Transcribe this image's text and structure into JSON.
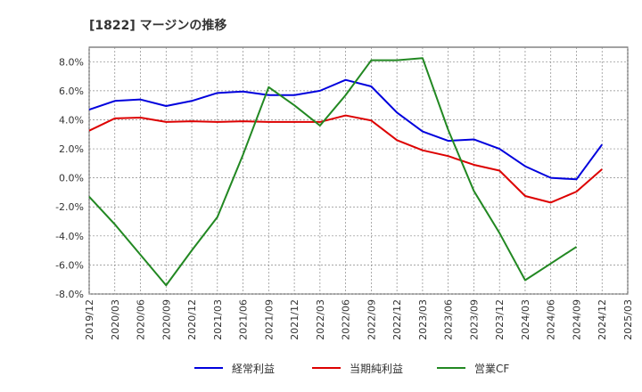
{
  "chart_data": {
    "type": "line",
    "title": "[1822]  マージンの推移",
    "xlabel": "",
    "ylabel": "",
    "ylim": [
      -8,
      9
    ],
    "yticks": [
      -8,
      -6,
      -4,
      -2,
      0,
      2,
      4,
      6,
      8
    ],
    "ytick_labels": [
      "-8.0%",
      "-6.0%",
      "-4.0%",
      "-2.0%",
      "0.0%",
      "2.0%",
      "4.0%",
      "6.0%",
      "8.0%"
    ],
    "x": [
      "2019/12",
      "2020/03",
      "2020/06",
      "2020/09",
      "2020/12",
      "2021/03",
      "2021/06",
      "2021/09",
      "2021/12",
      "2022/03",
      "2022/06",
      "2022/09",
      "2022/12",
      "2023/03",
      "2023/06",
      "2023/09",
      "2023/12",
      "2024/03",
      "2024/06",
      "2024/09",
      "2024/12",
      "2025/03"
    ],
    "grid": true,
    "legend_position": "bottom",
    "series": [
      {
        "name": "経常利益",
        "color": "#0000dd",
        "values": [
          4.7,
          5.3,
          5.4,
          4.95,
          5.3,
          5.85,
          5.95,
          5.7,
          5.7,
          6.0,
          6.75,
          6.3,
          4.5,
          3.2,
          2.55,
          2.65,
          2.0,
          0.8,
          0.0,
          -0.1,
          2.3,
          null
        ]
      },
      {
        "name": "当期純利益",
        "color": "#dd0000",
        "values": [
          3.25,
          4.1,
          4.15,
          3.85,
          3.9,
          3.85,
          3.9,
          3.85,
          3.85,
          3.85,
          4.3,
          3.95,
          2.6,
          1.9,
          1.5,
          0.9,
          0.5,
          -1.25,
          -1.7,
          -0.95,
          0.6,
          null
        ]
      },
      {
        "name": "営業CF",
        "color": "#228822",
        "values": [
          -1.3,
          -3.2,
          -5.3,
          -7.4,
          -5.0,
          -2.7,
          1.6,
          6.25,
          5.0,
          3.6,
          5.7,
          8.1,
          8.1,
          8.25,
          3.3,
          -0.9,
          -3.8,
          -7.05,
          -5.9,
          -4.75,
          null,
          null
        ]
      }
    ]
  }
}
